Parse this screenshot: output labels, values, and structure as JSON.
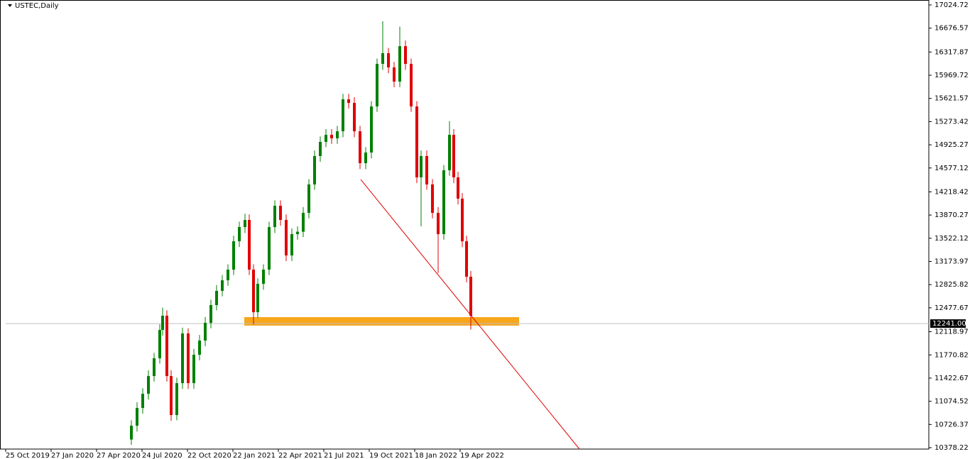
{
  "chart_data": {
    "type": "candlestick",
    "title": "USTEC,Daily",
    "x": [
      177,
      185,
      193,
      201,
      209,
      217,
      221,
      227,
      233,
      241,
      249,
      257,
      265,
      273,
      281,
      289,
      297,
      305,
      313,
      321,
      329,
      337,
      343,
      349,
      355,
      363,
      371,
      379,
      387,
      395,
      403,
      411,
      419,
      427,
      435,
      443,
      451,
      459,
      467,
      475,
      483,
      491,
      499,
      507,
      515,
      523,
      531,
      539,
      547,
      555,
      563,
      571,
      579,
      585,
      593,
      601,
      609,
      617,
      625,
      631,
      637,
      643,
      649,
      655
    ],
    "open": [
      10500,
      10708,
      10974,
      11187,
      11453,
      11720,
      12146,
      12359,
      11453,
      10868,
      11347,
      12093,
      11347,
      11773,
      11986,
      12252,
      12519,
      12732,
      12891,
      13051,
      13477,
      13690,
      13797,
      13051,
      12412,
      12838,
      13051,
      13690,
      14010,
      13797,
      13264,
      13584,
      13620,
      13903,
      14330,
      14756,
      14969,
      15075,
      15022,
      15128,
      15608,
      15554,
      15128,
      14649,
      14809,
      15501,
      16140,
      16300,
      16087,
      15874,
      16406,
      16140,
      15501,
      14436,
      14756,
      14330,
      13903,
      13584,
      14543,
      15075,
      14436,
      14117,
      13477,
      12945
    ],
    "high": [
      10790,
      11060,
      11270,
      11540,
      11800,
      12230,
      12480,
      12440,
      11540,
      11430,
      12180,
      12170,
      11860,
      12070,
      12340,
      12600,
      12820,
      12970,
      13130,
      13560,
      13770,
      13890,
      13880,
      13130,
      12920,
      13130,
      13770,
      14090,
      14090,
      13880,
      13670,
      13700,
      13990,
      14410,
      14840,
      15050,
      15160,
      15160,
      15210,
      15690,
      15690,
      15640,
      15210,
      14890,
      15580,
      16220,
      16780,
      16380,
      16170,
      16700,
      16490,
      16220,
      15580,
      14840,
      14840,
      14410,
      13990,
      14620,
      15280,
      15160,
      14520,
      14200,
      13560,
      13030
    ],
    "low": [
      10420,
      10620,
      10890,
      11100,
      11370,
      11640,
      12060,
      11370,
      10780,
      10790,
      11260,
      11260,
      11260,
      11690,
      11900,
      12170,
      12440,
      12650,
      12810,
      12970,
      13390,
      13600,
      12970,
      12231,
      12330,
      12750,
      12970,
      13600,
      13710,
      13180,
      13180,
      13500,
      13540,
      13820,
      14250,
      14670,
      14890,
      14940,
      14940,
      15040,
      15470,
      15040,
      14560,
      14560,
      14720,
      15420,
      16050,
      16000,
      15790,
      15790,
      16050,
      15420,
      14350,
      13700,
      14250,
      13820,
      13000,
      13500,
      14460,
      14350,
      14030,
      13390,
      12860,
      12150
    ],
    "close": [
      10708,
      10974,
      11187,
      11453,
      11720,
      12146,
      12359,
      11453,
      10868,
      11347,
      12093,
      11347,
      11773,
      11986,
      12252,
      12519,
      12732,
      12891,
      13051,
      13477,
      13690,
      13797,
      13051,
      12412,
      12838,
      13051,
      13690,
      14010,
      13797,
      13264,
      13584,
      13620,
      13903,
      14330,
      14756,
      14969,
      15075,
      15022,
      15128,
      15608,
      15554,
      15128,
      14649,
      14809,
      15501,
      16140,
      16300,
      16087,
      15874,
      16406,
      16140,
      15501,
      14436,
      14756,
      14330,
      13903,
      13584,
      14543,
      15075,
      14436,
      14117,
      13477,
      12945,
      12359
    ],
    "up_color": "#008000",
    "down_color": "#e00000",
    "xlim": [
      0,
      1300
    ],
    "xticks": [
      {
        "value": 0,
        "label": "25 Oct 2019"
      },
      {
        "value": 64,
        "label": "27 Jan 2020"
      },
      {
        "value": 128,
        "label": "27 Apr 2020"
      },
      {
        "value": 192,
        "label": "24 Jul 2020"
      },
      {
        "value": 256,
        "label": "22 Oct 2020"
      },
      {
        "value": 320,
        "label": "22 Jan 2021"
      },
      {
        "value": 384,
        "label": "22 Apr 2021"
      },
      {
        "value": 448,
        "label": "21 Jul 2021"
      },
      {
        "value": 512,
        "label": "19 Oct 2021"
      },
      {
        "value": 576,
        "label": "18 Jan 2022"
      },
      {
        "value": 640,
        "label": "19 Apr 2022"
      }
    ],
    "ylim": [
      10357,
      17099
    ],
    "yticks": [
      17024.72,
      16676.57,
      16317.87,
      15969.72,
      15621.57,
      15273.42,
      14925.27,
      14577.12,
      14218.42,
      13870.27,
      13522.12,
      13173.97,
      12825.82,
      12477.67,
      12118.97,
      11770.82,
      11422.67,
      11074.52,
      10726.37,
      10378.22
    ],
    "price_line": {
      "value": 12241,
      "label": "12241.00"
    },
    "zone": {
      "x": [
        336,
        723
      ],
      "y": [
        12210,
        12338
      ],
      "color": "#f7a71c"
    },
    "trend_line": {
      "x": [
        500,
        808
      ],
      "y": [
        14404,
        10357
      ],
      "color": "#e00000"
    }
  }
}
